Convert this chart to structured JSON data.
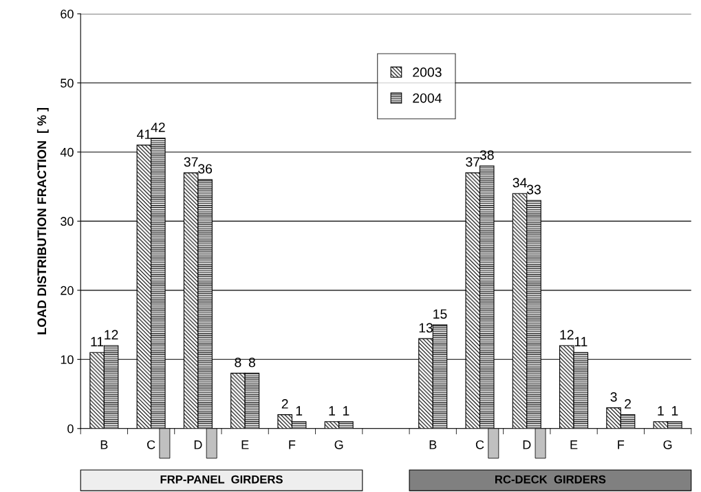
{
  "chart_data": {
    "type": "bar",
    "ylabel": "LOAD DISTRIBUTION FRACTION  [ % ]",
    "categories": [
      "B",
      "C",
      "D",
      "E",
      "F",
      "G",
      null,
      "B",
      "C",
      "D",
      "E",
      "F",
      "G"
    ],
    "series": [
      {
        "name": "2003",
        "color": "#000000",
        "values": [
          11,
          41,
          37,
          8,
          2,
          1,
          null,
          13,
          37,
          34,
          12,
          3,
          1
        ]
      },
      {
        "name": "2004",
        "color": "#000000",
        "values": [
          12,
          42,
          36,
          8,
          1,
          1,
          null,
          15,
          38,
          33,
          11,
          2,
          1
        ]
      }
    ],
    "ylim": [
      0,
      60
    ],
    "yticks": [
      0,
      10,
      20,
      30,
      40,
      50,
      60
    ],
    "grid": "y",
    "legend": "top center",
    "data_labels": true,
    "annotations": [
      "FRP-PANEL  GIRDERS",
      "RC-DECK  GIRDERS"
    ]
  }
}
